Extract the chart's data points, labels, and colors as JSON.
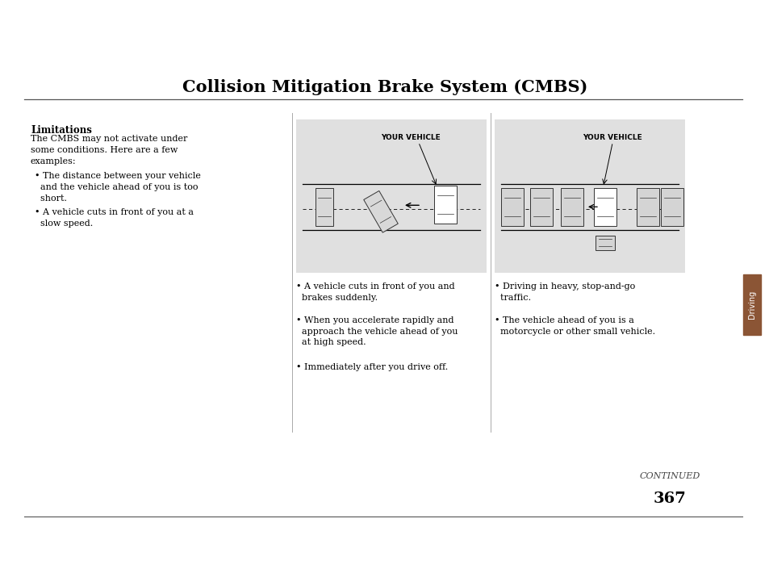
{
  "title": "Collision Mitigation Brake System (CMBS)",
  "bg_color": "#ffffff",
  "page_number": "367",
  "sidebar_color": "#8B5535",
  "sidebar_text": "Driving",
  "diagram_bg": "#e0e0e0",
  "limitations_heading": "Limitations",
  "limitations_text": "The CMBS may not activate under\nsome conditions. Here are a few\nexamples:",
  "bullet1": "• The distance between your vehicle\n  and the vehicle ahead of you is too\n  short.",
  "bullet2": "• A vehicle cuts in front of you at a\n  slow speed.",
  "diagram1_label": "YOUR VEHICLE",
  "diagram2_label": "YOUR VEHICLE",
  "col2_bullet1": "• A vehicle cuts in front of you and\n  brakes suddenly.",
  "col2_bullet2": "• When you accelerate rapidly and\n  approach the vehicle ahead of you\n  at high speed.",
  "col2_bullet3": "• Immediately after you drive off.",
  "col3_bullet1": "• Driving in heavy, stop-and-go\n  traffic.",
  "col3_bullet2": "• The vehicle ahead of you is a\n  motorcycle or other small vehicle.",
  "continued_text": "CONTINUED",
  "title_fontsize": 15,
  "body_fontsize": 8,
  "heading_fontsize": 8.5
}
